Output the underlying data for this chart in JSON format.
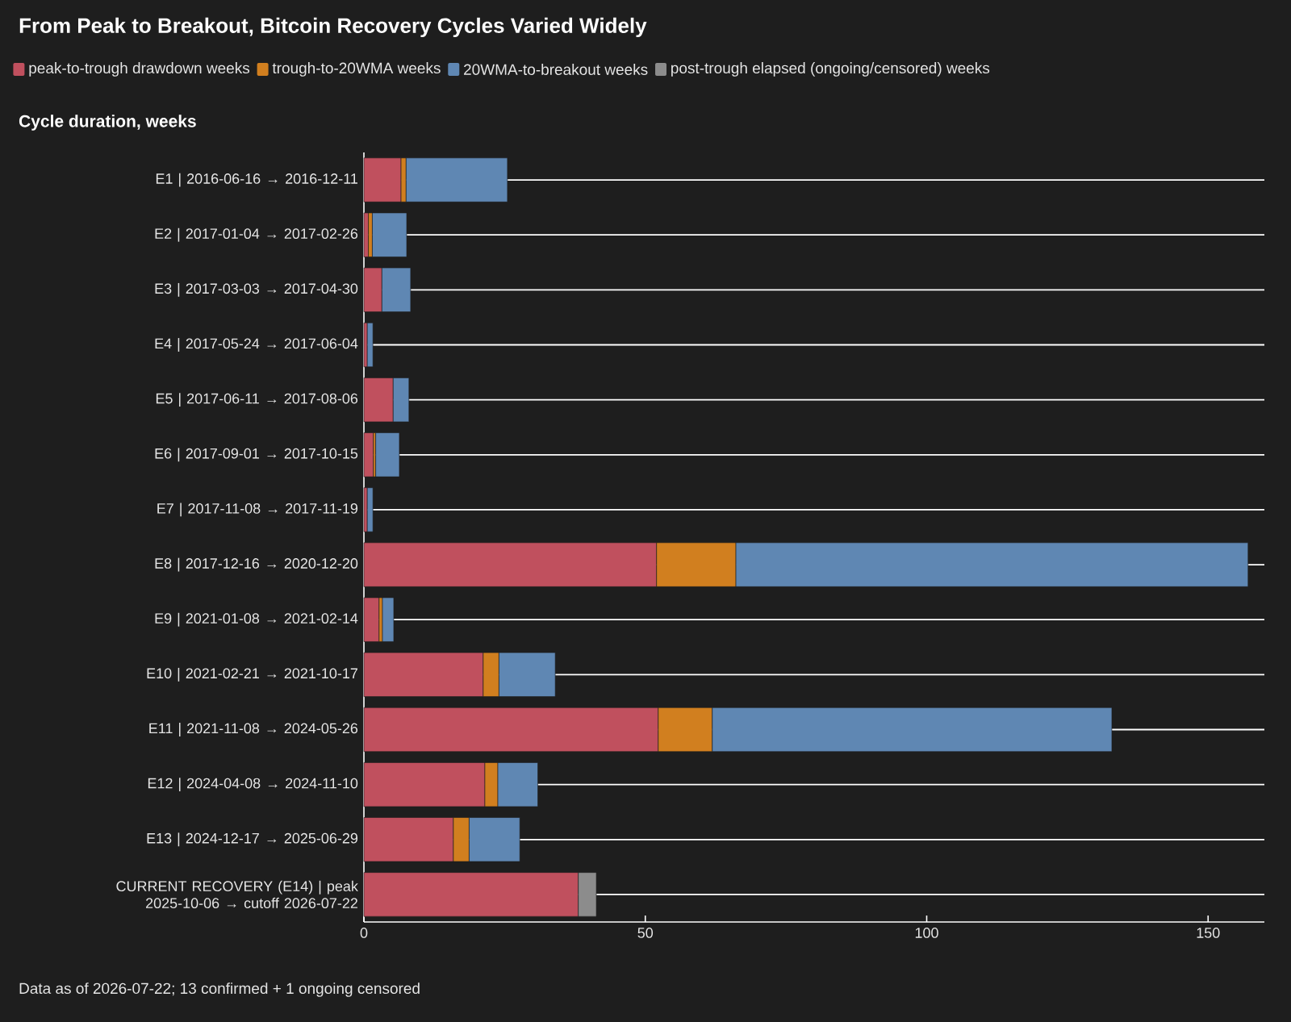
{
  "chart_data": {
    "type": "bar",
    "orientation": "horizontal",
    "stacked": true,
    "title": "From Peak to Breakout, Bitcoin Recovery Cycles Varied Widely",
    "xlabel": "Cycle duration, weeks",
    "categories": [
      "E1 | 2016-06-16 → 2016-12-11",
      "E2 | 2017-01-04 → 2017-02-26",
      "E3 | 2017-03-03 → 2017-04-30",
      "E4 | 2017-05-24 → 2017-06-04",
      "E5 | 2017-06-11 → 2017-08-06",
      "E6 | 2017-09-01 → 2017-10-15",
      "E7 | 2017-11-08 → 2017-11-19",
      "E8 | 2017-12-16 → 2020-12-20",
      "E9 | 2021-01-08 → 2021-02-14",
      "E10 | 2021-02-21 → 2021-10-17",
      "E11 | 2021-11-08 → 2024-05-26",
      "E12 | 2024-04-08 → 2024-11-10",
      "E13 | 2024-12-17 → 2025-06-29",
      "CURRENT RECOVERY (E14) | peak 2025-10-06 → cutoff 2026-07-22"
    ],
    "series": [
      {
        "name": "peak-to-trough drawdown weeks",
        "color": "#c0505e",
        "values": [
          6.6,
          0.8,
          3.2,
          0.6,
          5.2,
          1.7,
          0.6,
          52.0,
          2.7,
          21.2,
          52.3,
          21.5,
          15.9,
          38.1
        ]
      },
      {
        "name": "trough-to-20WMA weeks",
        "color": "#d17f1f",
        "values": [
          0.9,
          0.7,
          null,
          null,
          null,
          0.4,
          null,
          14.1,
          0.6,
          2.8,
          9.6,
          2.3,
          2.8,
          null
        ]
      },
      {
        "name": "20WMA-to-breakout weeks",
        "color": "#5f87b3",
        "values": [
          18.0,
          6.1,
          5.1,
          1.0,
          2.8,
          4.2,
          1.0,
          91.0,
          2.0,
          10.0,
          71.0,
          7.1,
          9.0,
          null
        ]
      },
      {
        "name": "post-trough elapsed (ongoing/censored) weeks",
        "color": "#8c8c8c",
        "values": [
          null,
          null,
          null,
          null,
          null,
          null,
          null,
          null,
          null,
          null,
          null,
          null,
          null,
          3.2
        ]
      }
    ],
    "xlim": [
      0,
      160
    ],
    "xticks": [
      0,
      50,
      100,
      150
    ],
    "grid": "y",
    "legend": "top left",
    "annotations": [
      "Data as of 2026-07-22; 13 confirmed + 1 ongoing censored"
    ]
  }
}
